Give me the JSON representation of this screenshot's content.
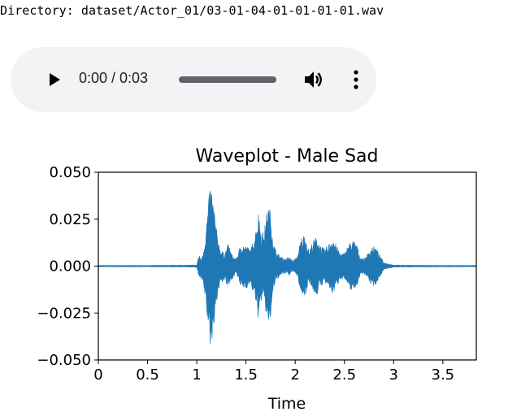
{
  "header": {
    "directory_text": "Directory: dataset/Actor_01/03-01-04-01-01-01-01.wav"
  },
  "audio_player": {
    "time_display": "0:00 / 0:03",
    "progress_fraction": 0,
    "play_icon": "play-icon",
    "volume_icon": "volume-icon",
    "menu_icon": "more-vert-icon"
  },
  "chart_data": {
    "type": "area",
    "title": "Waveplot - Male Sad",
    "xlabel": "Time",
    "ylabel": "",
    "xlim": [
      0,
      3.84
    ],
    "ylim": [
      -0.05,
      0.05
    ],
    "x_ticks": [
      0,
      0.5,
      1,
      1.5,
      2,
      2.5,
      3,
      3.5
    ],
    "x_tick_labels": [
      "0",
      "0.5",
      "1",
      "1.5",
      "2",
      "2.5",
      "3",
      "3.5"
    ],
    "y_ticks": [
      0.05,
      0.025,
      0.0,
      -0.025,
      -0.05
    ],
    "y_tick_labels": [
      "0.050",
      "0.025",
      "0.000",
      "−0.025",
      "−0.050"
    ],
    "grid": false,
    "legend": "none",
    "color": "#1f77b4",
    "envelope": {
      "t": [
        0,
        0.5,
        1.0,
        1.02,
        1.05,
        1.08,
        1.11,
        1.14,
        1.17,
        1.2,
        1.24,
        1.28,
        1.32,
        1.36,
        1.4,
        1.45,
        1.5,
        1.55,
        1.6,
        1.63,
        1.66,
        1.69,
        1.72,
        1.75,
        1.78,
        1.82,
        1.86,
        1.9,
        1.94,
        1.98,
        2.02,
        2.06,
        2.1,
        2.14,
        2.18,
        2.22,
        2.26,
        2.3,
        2.34,
        2.38,
        2.42,
        2.46,
        2.5,
        2.54,
        2.58,
        2.62,
        2.66,
        2.7,
        2.74,
        2.78,
        2.82,
        2.86,
        2.9,
        3.0,
        3.2,
        3.5,
        3.84
      ],
      "upper": [
        0.0004,
        0.0004,
        0.0006,
        0.006,
        0.004,
        0.013,
        0.03,
        0.045,
        0.035,
        0.02,
        0.009,
        0.007,
        0.012,
        0.006,
        0.004,
        0.012,
        0.011,
        0.009,
        0.02,
        0.03,
        0.017,
        0.021,
        0.033,
        0.03,
        0.012,
        0.007,
        0.005,
        0.004,
        0.005,
        0.003,
        0.005,
        0.015,
        0.018,
        0.008,
        0.014,
        0.016,
        0.011,
        0.009,
        0.012,
        0.016,
        0.011,
        0.007,
        0.007,
        0.012,
        0.014,
        0.013,
        0.005,
        0.004,
        0.007,
        0.011,
        0.01,
        0.006,
        0.002,
        0.0006,
        0.0005,
        0.0004,
        0.0004
      ],
      "lower": [
        -0.0004,
        -0.0004,
        -0.0006,
        -0.006,
        -0.008,
        -0.015,
        -0.03,
        -0.046,
        -0.034,
        -0.02,
        -0.009,
        -0.008,
        -0.012,
        -0.007,
        -0.004,
        -0.012,
        -0.012,
        -0.01,
        -0.02,
        -0.03,
        -0.017,
        -0.021,
        -0.032,
        -0.029,
        -0.012,
        -0.007,
        -0.005,
        -0.004,
        -0.005,
        -0.003,
        -0.005,
        -0.015,
        -0.017,
        -0.008,
        -0.014,
        -0.016,
        -0.011,
        -0.009,
        -0.012,
        -0.015,
        -0.011,
        -0.007,
        -0.007,
        -0.012,
        -0.013,
        -0.012,
        -0.005,
        -0.004,
        -0.007,
        -0.011,
        -0.01,
        -0.006,
        -0.002,
        -0.0006,
        -0.0005,
        -0.0004,
        -0.0004
      ]
    }
  }
}
